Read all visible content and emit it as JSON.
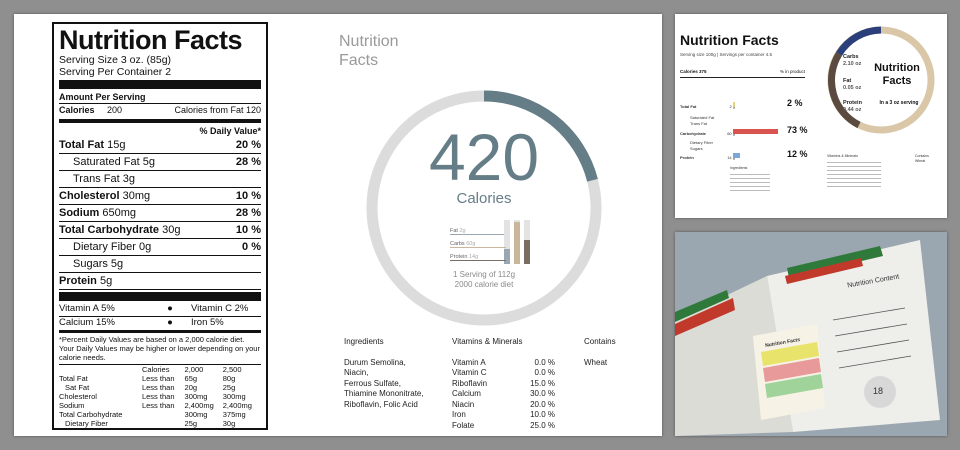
{
  "label": {
    "title": "Nutrition Facts",
    "serving_size": "Serving Size 3 oz. (85g)",
    "servings_per_container": "Serving Per Container 2",
    "amount_per_serving": "Amount Per Serving",
    "calories_label": "Calories",
    "calories_value": "200",
    "calories_from_fat": "Calories from Fat 120",
    "daily_value_header": "% Daily Value*",
    "rows": [
      {
        "name": "Total Fat",
        "amount": "15g",
        "dv": "20 %",
        "bold": true,
        "indent": false
      },
      {
        "name": "Saturated Fat",
        "amount": "5g",
        "dv": "28 %",
        "bold": false,
        "indent": true
      },
      {
        "name": "Trans Fat",
        "amount": "3g",
        "dv": "",
        "bold": false,
        "indent": true
      },
      {
        "name": "Cholesterol",
        "amount": "30mg",
        "dv": "10 %",
        "bold": true,
        "indent": false
      },
      {
        "name": "Sodium",
        "amount": "650mg",
        "dv": "28 %",
        "bold": true,
        "indent": false
      },
      {
        "name": "Total  Carbohydrate",
        "amount": "30g",
        "dv": "10 %",
        "bold": true,
        "indent": false
      },
      {
        "name": "Dietary Fiber",
        "amount": "0g",
        "dv": "0 %",
        "bold": false,
        "indent": true
      },
      {
        "name": "Sugars",
        "amount": "5g",
        "dv": "",
        "bold": false,
        "indent": true
      },
      {
        "name": "Protein",
        "amount": "5g",
        "dv": "",
        "bold": true,
        "indent": false
      }
    ],
    "vitamins": [
      {
        "left": "Vitamin A 5%",
        "right": "Vitamin C 2%"
      },
      {
        "left": "Calcium 15%",
        "right": "Iron 5%"
      }
    ],
    "bullet": "●",
    "footnote": "*Percent Daily Values are based on a 2,000 calorie diet. Your Daily Values may be higher or lower depending  on your calorie needs.",
    "dv_table": {
      "headers": [
        "",
        "Calories",
        "2,000",
        "2,500"
      ],
      "rows": [
        [
          "Total Fat",
          "Less than",
          "65g",
          "80g"
        ],
        [
          "Sat Fat",
          "Less than",
          "20g",
          "25g"
        ],
        [
          "Cholesterol",
          "Less than",
          "300mg",
          "300mg"
        ],
        [
          "Sodium",
          "Less than",
          "2,400mg",
          "2,400mg"
        ],
        [
          "Total Carbohydrate",
          "",
          "300mg",
          "375mg"
        ],
        [
          "Dietary Fiber",
          "",
          "25g",
          "30g"
        ]
      ]
    }
  },
  "infographic": {
    "title_line1": "Nutrition",
    "title_line2": "Facts",
    "calories_value": "420",
    "calories_word": "Calories",
    "ring_fraction": 0.21,
    "mini_bars": [
      {
        "label": "Fat",
        "value": "2g",
        "level": 0.35,
        "color": "#9aa7b0"
      },
      {
        "label": "Carbs",
        "value": "60g",
        "level": 0.95,
        "color": "#c8b79a"
      },
      {
        "label": "Protein",
        "value": "14g",
        "level": 0.55,
        "color": "#7a6e62"
      }
    ],
    "serving_line1": "1 Serving of 112g",
    "serving_line2": "2000 calorie diet",
    "ingredients_header": "Ingredients",
    "ingredients": [
      "Durum Semolina,",
      "Niacin,",
      "Ferrous Sulfate,",
      "Thiamine Mononitrate,",
      "Riboflavin, Folic Acid"
    ],
    "vitamins_header": "Vitamins & Minerals",
    "vitamins": [
      {
        "name": "Vitamin A",
        "value": "0.0 %"
      },
      {
        "name": "Vitamin C",
        "value": "0.0 %"
      },
      {
        "name": "Riboflavin",
        "value": "15.0 %"
      },
      {
        "name": "Calcium",
        "value": "30.0 %"
      },
      {
        "name": "Niacin",
        "value": "20.0 %"
      },
      {
        "name": "Iron",
        "value": "10.0 %"
      },
      {
        "name": "Folate",
        "value": "25.0 %"
      }
    ],
    "contains_header": "Contains",
    "contains": "Wheat",
    "accent_color": "#647d87"
  },
  "top_right": {
    "title": "Nutrition Facts",
    "subtitle": "Serving size 100g | Servings per container 4.5",
    "calories_label": "Calories  375",
    "calories_right": "% in product",
    "rows": [
      {
        "name": "Total Fat",
        "amount": "2 g",
        "pct": "2 %",
        "bar": 0.02,
        "color": "#e8d27a"
      },
      {
        "name": "Carbohydrate",
        "amount": "60 g",
        "pct": "73 %",
        "bar": 0.73,
        "color": "#d9534f"
      },
      {
        "name": "Protein",
        "amount": "14 g",
        "pct": "12 %",
        "bar": 0.12,
        "color": "#7aa7d9"
      }
    ],
    "sub_rows": [
      "Saturated Fat",
      "Trans Fat",
      "Dietary Fiber",
      "Sugars"
    ],
    "ring_title_1": "Nutrition",
    "ring_title_2": "Facts",
    "ring_caption": "In a 3 oz serving",
    "ring_labels": [
      {
        "name": "Carbs",
        "value": "2.10 oz"
      },
      {
        "name": "Fat",
        "value": "0.05 oz"
      },
      {
        "name": "Protein",
        "value": "0.44 oz"
      }
    ],
    "ingredients_header": "Ingredients",
    "vitamins_header": "Vitamins & Minerals",
    "contains_header": "Contains",
    "contains": "Wheat"
  },
  "bottom_right": {
    "page_title": "Nutrition Content",
    "page_number": "18",
    "label_title": "Nutrition Facts"
  }
}
